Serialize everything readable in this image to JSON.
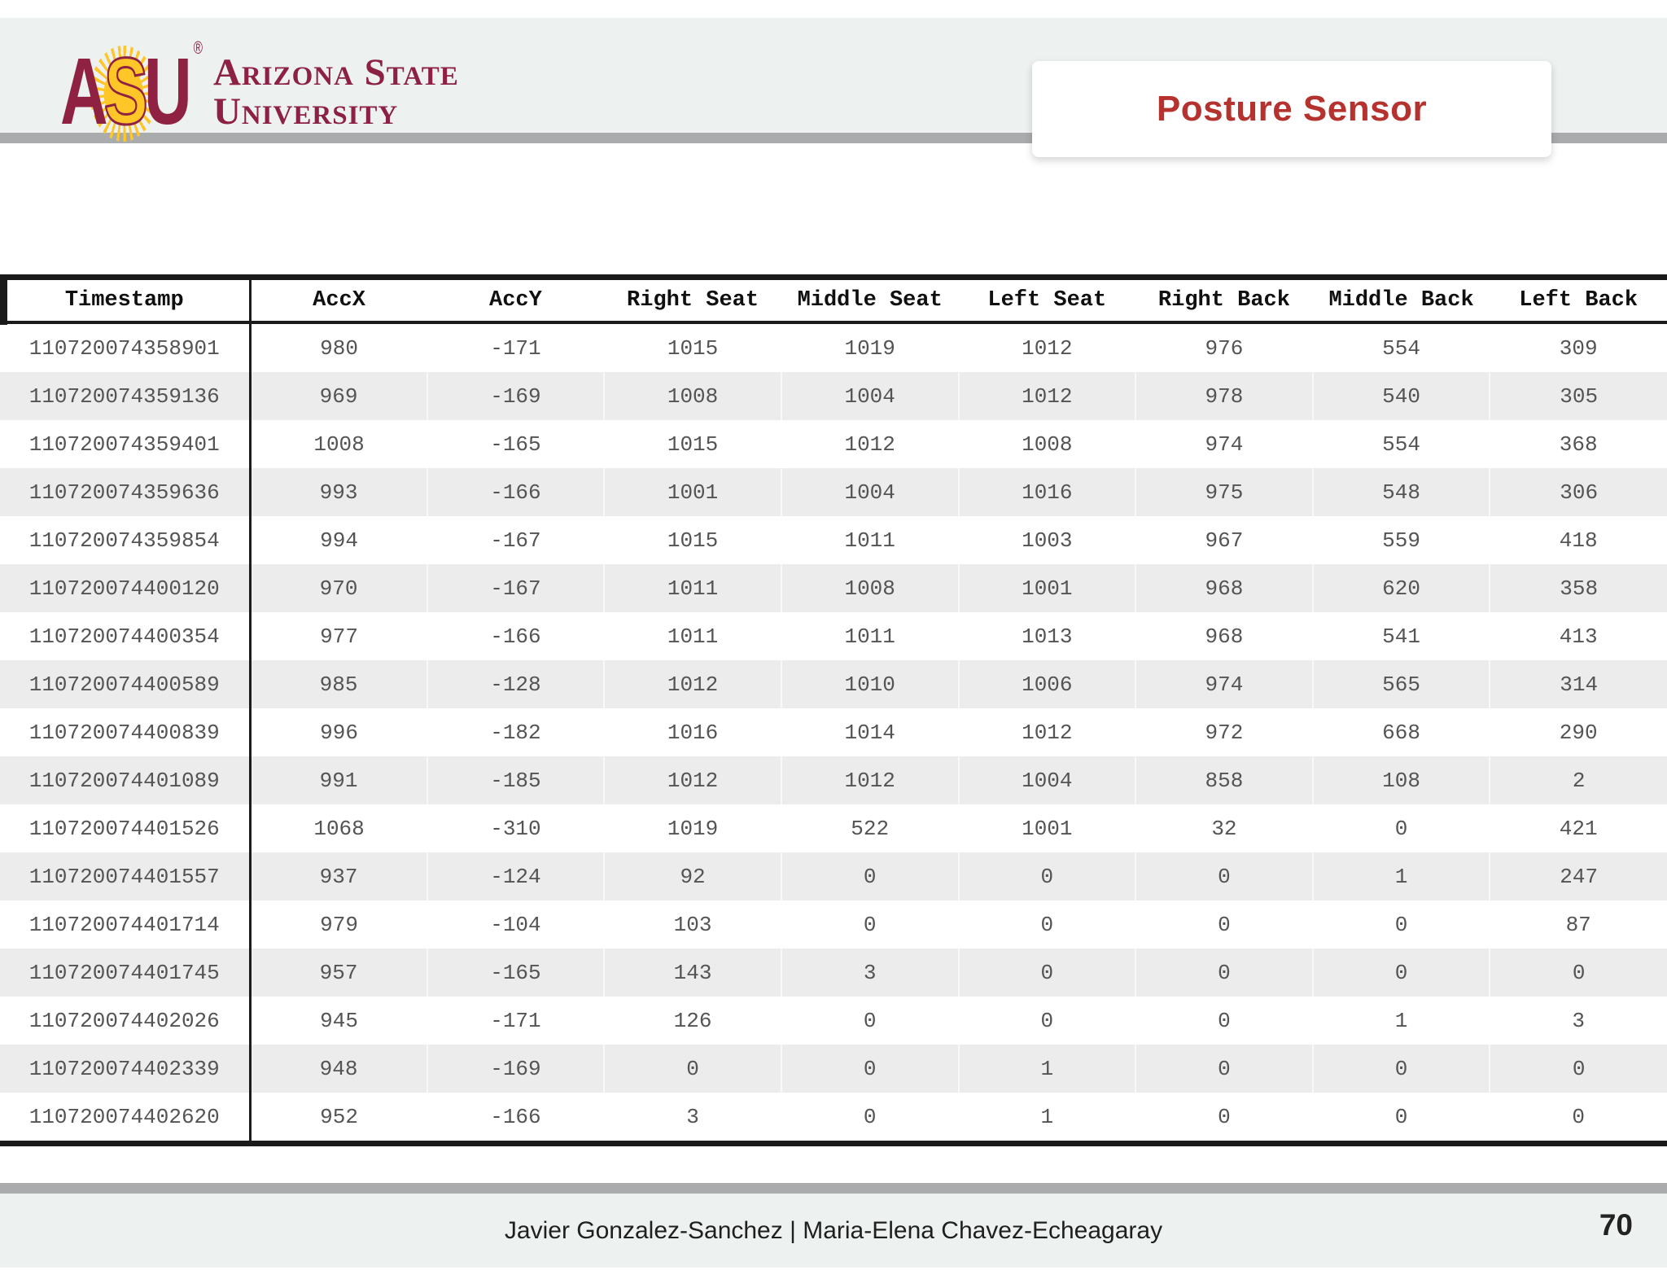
{
  "slide": {
    "logo": {
      "letter_a": "A",
      "letter_s": "S",
      "letter_u": "U",
      "registered_mark": "®",
      "wordmark_line1": "Arizona State",
      "wordmark_line2": "University"
    },
    "title": "Posture Sensor",
    "footer": {
      "authors": "Javier Gonzalez-Sanchez  |  Maria-Elena Chavez-Echeagaray",
      "page_number": "70"
    },
    "colors": {
      "asu_maroon": "#8f2143",
      "asu_gold": "#ffc627",
      "title_red": "#b5322e",
      "bar_gray": "#a9abad",
      "band_light": "#edf2f0",
      "row_shaded": "#ececec",
      "table_border": "#1b1b1b",
      "data_text": "#545454"
    }
  },
  "table": {
    "columns": [
      "Timestamp",
      "AccX",
      "AccY",
      "Right Seat",
      "Middle Seat",
      "Left Seat",
      "Right Back",
      "Middle Back",
      "Left Back"
    ],
    "rows": [
      [
        "110720074358901",
        "980",
        "-171",
        "1015",
        "1019",
        "1012",
        "976",
        "554",
        "309"
      ],
      [
        "110720074359136",
        "969",
        "-169",
        "1008",
        "1004",
        "1012",
        "978",
        "540",
        "305"
      ],
      [
        "110720074359401",
        "1008",
        "-165",
        "1015",
        "1012",
        "1008",
        "974",
        "554",
        "368"
      ],
      [
        "110720074359636",
        "993",
        "-166",
        "1001",
        "1004",
        "1016",
        "975",
        "548",
        "306"
      ],
      [
        "110720074359854",
        "994",
        "-167",
        "1015",
        "1011",
        "1003",
        "967",
        "559",
        "418"
      ],
      [
        "110720074400120",
        "970",
        "-167",
        "1011",
        "1008",
        "1001",
        "968",
        "620",
        "358"
      ],
      [
        "110720074400354",
        "977",
        "-166",
        "1011",
        "1011",
        "1013",
        "968",
        "541",
        "413"
      ],
      [
        "110720074400589",
        "985",
        "-128",
        "1012",
        "1010",
        "1006",
        "974",
        "565",
        "314"
      ],
      [
        "110720074400839",
        "996",
        "-182",
        "1016",
        "1014",
        "1012",
        "972",
        "668",
        "290"
      ],
      [
        "110720074401089",
        "991",
        "-185",
        "1012",
        "1012",
        "1004",
        "858",
        "108",
        "2"
      ],
      [
        "110720074401526",
        "1068",
        "-310",
        "1019",
        "522",
        "1001",
        "32",
        "0",
        "421"
      ],
      [
        "110720074401557",
        "937",
        "-124",
        "92",
        "0",
        "0",
        "0",
        "1",
        "247"
      ],
      [
        "110720074401714",
        "979",
        "-104",
        "103",
        "0",
        "0",
        "0",
        "0",
        "87"
      ],
      [
        "110720074401745",
        "957",
        "-165",
        "143",
        "3",
        "0",
        "0",
        "0",
        "0"
      ],
      [
        "110720074402026",
        "945",
        "-171",
        "126",
        "0",
        "0",
        "0",
        "1",
        "3"
      ],
      [
        "110720074402339",
        "948",
        "-169",
        "0",
        "0",
        "1",
        "0",
        "0",
        "0"
      ],
      [
        "110720074402620",
        "952",
        "-166",
        "3",
        "0",
        "1",
        "0",
        "0",
        "0"
      ]
    ]
  }
}
